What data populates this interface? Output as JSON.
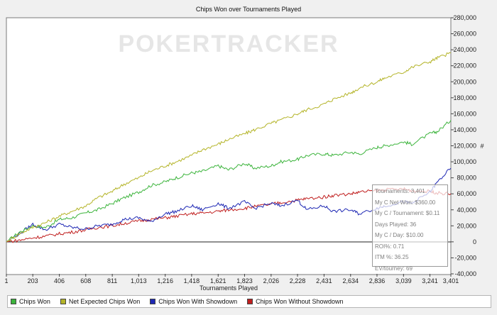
{
  "chart_data": {
    "type": "line",
    "title": "Chips Won over Tournaments Played",
    "xlabel": "Tournaments Played",
    "ylabel": "#",
    "x_ticks": [
      "1",
      "203",
      "406",
      "608",
      "811",
      "1,013",
      "1,216",
      "1,418",
      "1,621",
      "1,823",
      "2,026",
      "2,228",
      "2,431",
      "2,634",
      "2,836",
      "3,039",
      "3,241",
      "3,401"
    ],
    "y_ticks": [
      "-40,000",
      "-20,000",
      "0",
      "20,000",
      "40,000",
      "60,000",
      "80,000",
      "100,000",
      "120,000",
      "140,000",
      "160,000",
      "180,000",
      "200,000",
      "220,000",
      "240,000",
      "260,000",
      "280,000"
    ],
    "xlim": [
      1,
      3401
    ],
    "ylim": [
      -40000,
      280000
    ],
    "grid": false,
    "legend_position": "bottom",
    "x": [
      1,
      100,
      203,
      300,
      406,
      500,
      608,
      700,
      811,
      900,
      1013,
      1100,
      1216,
      1300,
      1418,
      1500,
      1621,
      1700,
      1823,
      1900,
      2026,
      2100,
      2228,
      2300,
      2431,
      2500,
      2634,
      2700,
      2836,
      2900,
      3039,
      3100,
      3241,
      3300,
      3401
    ],
    "series": [
      {
        "name": "Chips Won",
        "color": "#3cb43c",
        "values": [
          0,
          12000,
          20000,
          18000,
          28000,
          30000,
          36000,
          40000,
          48000,
          55000,
          62000,
          70000,
          75000,
          80000,
          86000,
          88000,
          95000,
          90000,
          98000,
          92000,
          95000,
          100000,
          103000,
          108000,
          110000,
          108000,
          112000,
          110000,
          118000,
          120000,
          125000,
          122000,
          135000,
          138000,
          152000
        ]
      },
      {
        "name": "Net Expected Chips Won",
        "color": "#b4b428",
        "values": [
          0,
          10000,
          18000,
          24000,
          32000,
          38000,
          45000,
          55000,
          63000,
          72000,
          80000,
          88000,
          95000,
          100000,
          108000,
          115000,
          122000,
          128000,
          135000,
          140000,
          148000,
          152000,
          160000,
          165000,
          172000,
          178000,
          186000,
          192000,
          200000,
          205000,
          212000,
          218000,
          225000,
          230000,
          236000
        ]
      },
      {
        "name": "Chips Won With Showdown",
        "color": "#1e28b4",
        "values": [
          0,
          10000,
          22000,
          15000,
          22000,
          18000,
          16000,
          20000,
          22000,
          28000,
          30000,
          25000,
          35000,
          38000,
          45000,
          40000,
          48000,
          42000,
          50000,
          42000,
          48000,
          45000,
          52000,
          40000,
          45000,
          38000,
          40000,
          35000,
          42000,
          45000,
          50000,
          48000,
          62000,
          75000,
          92000
        ]
      },
      {
        "name": "Chips Won Without Showdown",
        "color": "#c01e1e",
        "values": [
          0,
          2000,
          5000,
          7000,
          10000,
          12000,
          15000,
          18000,
          20000,
          23000,
          26000,
          28000,
          30000,
          32000,
          35000,
          36000,
          38000,
          40000,
          42000,
          44000,
          47000,
          49000,
          52000,
          54000,
          56000,
          58000,
          60000,
          62000,
          64000,
          65000,
          66000,
          64000,
          63000,
          61000,
          60000
        ]
      }
    ]
  },
  "watermark": "POKERTRACKER",
  "tooltip": {
    "lines": [
      "Tournaments: 3,401",
      "My C Net Won: $360.00",
      "My C / Tournament: $0.11",
      "Days Played: 36",
      "My C / Day: $10.00",
      "ROI%: 0.71",
      "ITM %: 36.25",
      "EV/tourney: 69"
    ]
  }
}
